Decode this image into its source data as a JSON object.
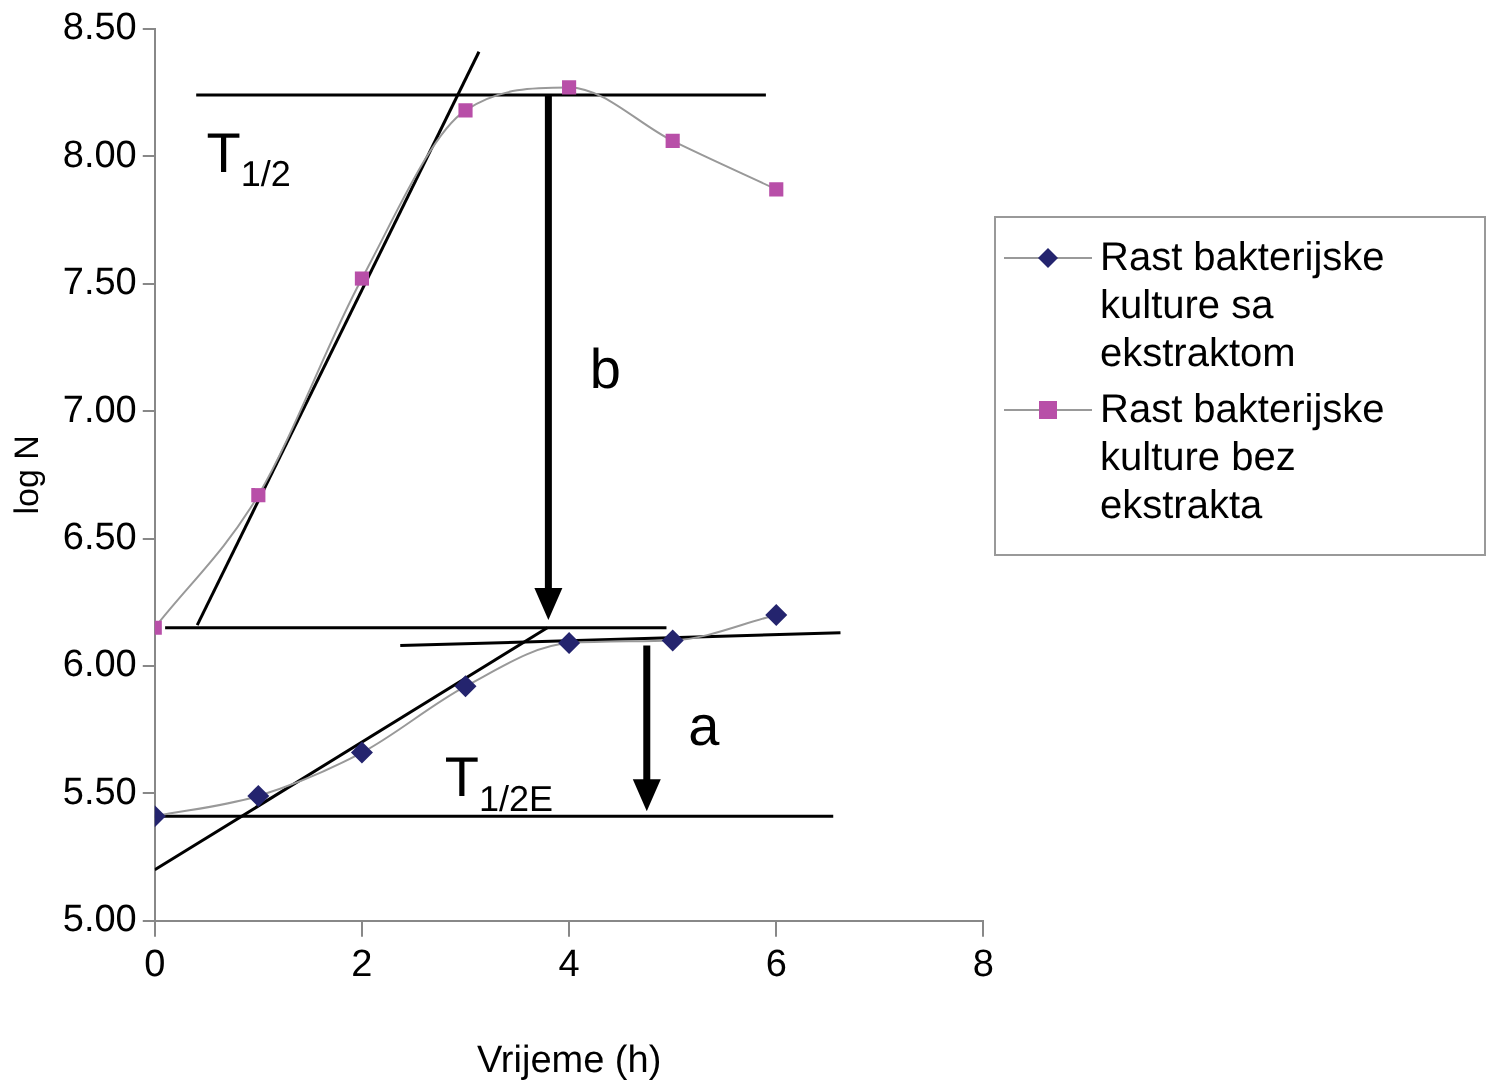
{
  "chart_data": {
    "type": "line",
    "xlabel": "Vrijeme (h)",
    "ylabel": "log N",
    "xlim": [
      0,
      8
    ],
    "xticks": [
      0,
      2,
      4,
      6,
      8
    ],
    "ylim": [
      5,
      8.5
    ],
    "yticks": [
      {
        "value": 5,
        "label": "5.00"
      },
      {
        "value": 5.5,
        "label": "5.50"
      },
      {
        "value": 6,
        "label": "6.00"
      },
      {
        "value": 6.5,
        "label": "6.50"
      },
      {
        "value": 7,
        "label": "7.00"
      },
      {
        "value": 7.5,
        "label": "7.50"
      },
      {
        "value": 8,
        "label": "8.00"
      },
      {
        "value": 8.5,
        "label": "8.50"
      }
    ],
    "grid": false,
    "legend": "right",
    "series": [
      {
        "name": "Rast bakterijske kulture sa ekstraktom",
        "color": "#24246e",
        "marker": "diamond",
        "x": [
          0,
          1,
          2,
          3,
          4,
          5,
          6
        ],
        "values": [
          5.41,
          5.49,
          5.66,
          5.92,
          6.09,
          6.1,
          6.2
        ]
      },
      {
        "name": "Rast bakterijske kulture bez ekstrakta",
        "color": "#b84fa8",
        "marker": "square",
        "x": [
          0,
          1,
          2,
          3,
          4,
          5,
          6
        ],
        "values": [
          6.15,
          6.67,
          7.52,
          8.18,
          8.27,
          8.06,
          7.87
        ]
      },
      {
        "type": "line",
        "color": "#000000",
        "marker": "none",
        "x": [
          0.4,
          5.9
        ],
        "values": [
          8.24,
          8.24
        ]
      },
      {
        "type": "line",
        "color": "#000000",
        "marker": "none",
        "x": [
          0.41,
          3.13
        ],
        "values": [
          6.16,
          8.41
        ]
      },
      {
        "type": "line",
        "color": "#000000",
        "marker": "none",
        "x": [
          0.1,
          4.94
        ],
        "values": [
          6.15,
          6.15
        ]
      },
      {
        "type": "line",
        "color": "#000000",
        "marker": "none",
        "x": [
          2.37,
          6.62
        ],
        "values": [
          6.08,
          6.13
        ]
      },
      {
        "type": "line",
        "color": "#000000",
        "marker": "none",
        "x": [
          0,
          3.79
        ],
        "values": [
          5.2,
          6.15
        ]
      },
      {
        "type": "line",
        "color": "#000000",
        "marker": "none",
        "x": [
          0,
          6.55
        ],
        "values": [
          5.41,
          5.41
        ]
      }
    ],
    "annotations": [
      "T$_{1/2}$",
      "b",
      "T$_{1/2E}$",
      "a"
    ]
  }
}
